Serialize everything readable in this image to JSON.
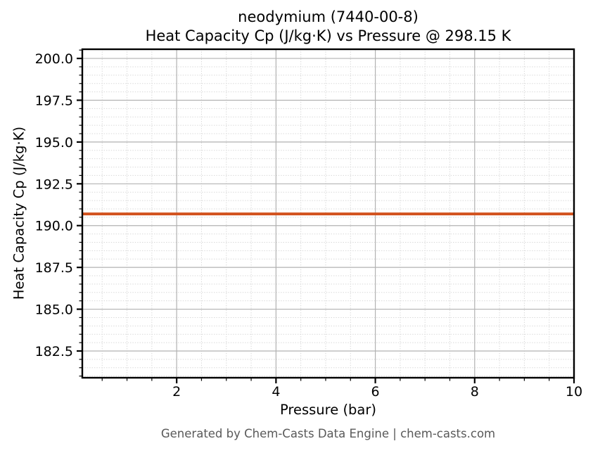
{
  "chart_data": {
    "type": "line",
    "title": "neodymium (7440-00-8)\nHeat Capacity Cp (J/kg·K) vs Pressure @ 298.15 K",
    "title_lines": [
      "neodymium (7440-00-8)",
      "Heat Capacity Cp (J/kg·K) vs Pressure @ 298.15 K"
    ],
    "xlabel": "Pressure (bar)",
    "ylabel": "Heat Capacity Cp (J/kg·K)",
    "xlim": [
      0.1,
      10.0
    ],
    "ylim": [
      180.9,
      200.55
    ],
    "x_major_ticks": [
      2,
      4,
      6,
      8,
      10
    ],
    "x_tick_labels": [
      "2",
      "4",
      "6",
      "8",
      "10"
    ],
    "x_minor_step": 0.5,
    "y_major_ticks": [
      182.5,
      185.0,
      187.5,
      190.0,
      192.5,
      195.0,
      197.5,
      200.0
    ],
    "y_tick_labels": [
      "182.5",
      "185.0",
      "187.5",
      "190.0",
      "192.5",
      "195.0",
      "197.5",
      "200.0"
    ],
    "y_minor_step": 0.5,
    "grid": {
      "major_visible": true,
      "minor_visible": true,
      "major_color": "#b2b2b2",
      "minor_color": "#d8d8d8",
      "minor_style": "dotted"
    },
    "legend": "none",
    "series": [
      {
        "name": "Heat Capacity Cp",
        "color": "#d2521e",
        "linewidth": 4,
        "x": [
          0.1,
          10.0
        ],
        "y": [
          190.7,
          190.7
        ]
      }
    ]
  },
  "footer": {
    "text": "Generated by Chem-Casts Data Engine | chem-casts.com",
    "color": "#595959"
  },
  "colors": {
    "background": "#ffffff",
    "spine": "#000000",
    "tick_label": "#000000",
    "line": "#d2521e"
  }
}
